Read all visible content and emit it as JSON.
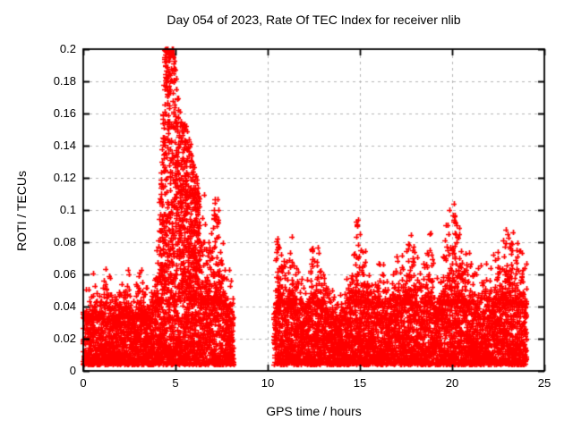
{
  "page": {
    "background": "#ffffff"
  },
  "chart_data": {
    "type": "scatter",
    "title": "Day 054 of 2023, Rate Of TEC Index for receiver nlib",
    "xlabel": "GPS time / hours",
    "ylabel": "ROTI / TECUs",
    "xlim": [
      0,
      25
    ],
    "ylim": [
      0,
      0.2
    ],
    "xticks": [
      0,
      5,
      10,
      15,
      20,
      25
    ],
    "xtick_labels": [
      "0",
      "5",
      "10",
      "15",
      "20",
      "25"
    ],
    "yticks": [
      0,
      0.02,
      0.04,
      0.06,
      0.08,
      0.1,
      0.12,
      0.14,
      0.16,
      0.18,
      0.2
    ],
    "ytick_labels": [
      "0",
      "0.02",
      "0.04",
      "0.06",
      "0.08",
      "0.1",
      "0.12",
      "0.14",
      "0.16",
      "0.18",
      "0.2"
    ],
    "grid": {
      "style": "dashed",
      "color": "#b4b4b4",
      "x_at": [
        5,
        10,
        15,
        20
      ],
      "y_at": [
        0.02,
        0.04,
        0.06,
        0.08,
        0.1,
        0.12,
        0.14,
        0.16,
        0.18
      ]
    },
    "marker": {
      "glyph": "plus",
      "color": "#ff0000",
      "size": 6
    },
    "series_name": "ROTI",
    "legend": "none",
    "data_gaps": [
      [
        8.15,
        10.35
      ]
    ],
    "y_floor": 0.004,
    "seed": 54,
    "segments": [
      {
        "x_start": 0.0,
        "x_end": 8.15,
        "envelope": [
          [
            0.0,
            0.048
          ],
          [
            0.2,
            0.042
          ],
          [
            0.4,
            0.05
          ],
          [
            0.6,
            0.058
          ],
          [
            0.8,
            0.045
          ],
          [
            1.0,
            0.052
          ],
          [
            1.2,
            0.066
          ],
          [
            1.4,
            0.06
          ],
          [
            1.6,
            0.052
          ],
          [
            1.8,
            0.046
          ],
          [
            2.0,
            0.056
          ],
          [
            2.2,
            0.05
          ],
          [
            2.4,
            0.062
          ],
          [
            2.6,
            0.048
          ],
          [
            2.8,
            0.044
          ],
          [
            3.0,
            0.066
          ],
          [
            3.2,
            0.058
          ],
          [
            3.4,
            0.048
          ],
          [
            3.6,
            0.044
          ],
          [
            3.8,
            0.052
          ],
          [
            4.0,
            0.07
          ],
          [
            4.15,
            0.1
          ],
          [
            4.3,
            0.16
          ],
          [
            4.45,
            0.2
          ],
          [
            4.6,
            0.2
          ],
          [
            4.75,
            0.2
          ],
          [
            4.9,
            0.2
          ],
          [
            5.0,
            0.19
          ],
          [
            5.15,
            0.17
          ],
          [
            5.3,
            0.16
          ],
          [
            5.5,
            0.155
          ],
          [
            5.7,
            0.15
          ],
          [
            5.85,
            0.14
          ],
          [
            6.0,
            0.13
          ],
          [
            6.15,
            0.12
          ],
          [
            6.3,
            0.11
          ],
          [
            6.5,
            0.095
          ],
          [
            6.7,
            0.085
          ],
          [
            6.9,
            0.08
          ],
          [
            7.1,
            0.1
          ],
          [
            7.3,
            0.105
          ],
          [
            7.5,
            0.075
          ],
          [
            7.7,
            0.06
          ],
          [
            7.9,
            0.055
          ],
          [
            8.15,
            0.045
          ]
        ]
      },
      {
        "x_start": 10.35,
        "x_end": 24.05,
        "envelope": [
          [
            10.35,
            0.05
          ],
          [
            10.5,
            0.08
          ],
          [
            10.65,
            0.082
          ],
          [
            10.8,
            0.072
          ],
          [
            11.0,
            0.065
          ],
          [
            11.2,
            0.075
          ],
          [
            11.4,
            0.07
          ],
          [
            11.6,
            0.06
          ],
          [
            11.8,
            0.055
          ],
          [
            12.0,
            0.05
          ],
          [
            12.2,
            0.06
          ],
          [
            12.4,
            0.075
          ],
          [
            12.6,
            0.065
          ],
          [
            12.8,
            0.07
          ],
          [
            13.0,
            0.062
          ],
          [
            13.2,
            0.055
          ],
          [
            13.5,
            0.045
          ],
          [
            13.8,
            0.042
          ],
          [
            14.1,
            0.048
          ],
          [
            14.4,
            0.06
          ],
          [
            14.7,
            0.082
          ],
          [
            14.9,
            0.093
          ],
          [
            15.1,
            0.08
          ],
          [
            15.3,
            0.065
          ],
          [
            15.5,
            0.06
          ],
          [
            15.7,
            0.055
          ],
          [
            16.0,
            0.065
          ],
          [
            16.3,
            0.058
          ],
          [
            16.6,
            0.052
          ],
          [
            16.9,
            0.062
          ],
          [
            17.2,
            0.07
          ],
          [
            17.5,
            0.078
          ],
          [
            17.8,
            0.08
          ],
          [
            18.0,
            0.065
          ],
          [
            18.2,
            0.055
          ],
          [
            18.5,
            0.06
          ],
          [
            18.8,
            0.086
          ],
          [
            19.0,
            0.06
          ],
          [
            19.2,
            0.055
          ],
          [
            19.5,
            0.07
          ],
          [
            19.8,
            0.085
          ],
          [
            20.1,
            0.098
          ],
          [
            20.3,
            0.09
          ],
          [
            20.5,
            0.08
          ],
          [
            20.7,
            0.07
          ],
          [
            21.0,
            0.066
          ],
          [
            21.2,
            0.058
          ],
          [
            21.5,
            0.055
          ],
          [
            21.8,
            0.06
          ],
          [
            22.0,
            0.055
          ],
          [
            22.3,
            0.065
          ],
          [
            22.6,
            0.072
          ],
          [
            22.9,
            0.078
          ],
          [
            23.2,
            0.08
          ],
          [
            23.5,
            0.075
          ],
          [
            23.8,
            0.068
          ],
          [
            24.05,
            0.06
          ]
        ]
      }
    ],
    "clusters": [
      {
        "x": 4.7,
        "y": 0.198,
        "n": 22,
        "sx": 0.28,
        "sy": 0.003
      },
      {
        "x": 4.55,
        "y": 0.19,
        "n": 10,
        "sx": 0.15,
        "sy": 0.006
      },
      {
        "x": 7.2,
        "y": 0.101,
        "n": 12,
        "sx": 0.15,
        "sy": 0.007
      },
      {
        "x": 10.55,
        "y": 0.079,
        "n": 6,
        "sx": 0.07,
        "sy": 0.004
      },
      {
        "x": 12.4,
        "y": 0.074,
        "n": 3,
        "sx": 0.03,
        "sy": 0.003
      },
      {
        "x": 14.85,
        "y": 0.091,
        "n": 5,
        "sx": 0.05,
        "sy": 0.004
      },
      {
        "x": 17.7,
        "y": 0.082,
        "n": 4,
        "sx": 0.06,
        "sy": 0.004
      },
      {
        "x": 18.8,
        "y": 0.086,
        "n": 2,
        "sx": 0.02,
        "sy": 0.002
      },
      {
        "x": 20.15,
        "y": 0.096,
        "n": 5,
        "sx": 0.06,
        "sy": 0.004
      },
      {
        "x": 23.2,
        "y": 0.078,
        "n": 5,
        "sx": 0.1,
        "sy": 0.004
      }
    ]
  }
}
